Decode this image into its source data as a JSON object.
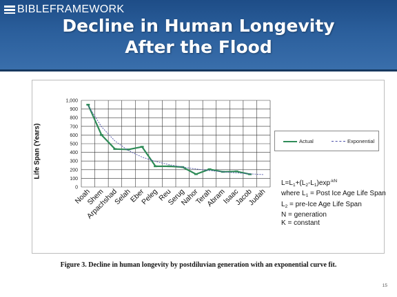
{
  "header": {
    "logo_text": "BIBLEFRAMEWORK",
    "logo_icon": "logo-bars-icon",
    "title_line1": "Decline in Human Longevity",
    "title_line2": "After the Flood"
  },
  "colors": {
    "header_bg": "#2b5f9c",
    "actual_line": "#2e8b57",
    "exponential_line": "#4a4fa8",
    "grid": "#333333"
  },
  "chart_data": {
    "type": "line",
    "categories": [
      "Noah",
      "Shem",
      "Arpachshad",
      "Selah",
      "Eber",
      "Peleg",
      "Reu",
      "Serug",
      "Nahor",
      "Terah",
      "Abram",
      "Isaac",
      "Jacob",
      "Judah"
    ],
    "ylabel": "Life Span (Years)",
    "xlabel": "",
    "ylim": [
      0,
      1000
    ],
    "yticks": [
      "0",
      "100",
      "200",
      "300",
      "400",
      "500",
      "600",
      "700",
      "800",
      "900",
      "1,000"
    ],
    "grid": true,
    "legend_position": "right",
    "series": [
      {
        "name": "Actual",
        "style": "solid",
        "values": [
          950,
          600,
          438,
          433,
          464,
          239,
          239,
          230,
          148,
          205,
          175,
          180,
          147,
          null
        ]
      },
      {
        "name": "Exponential",
        "style": "dashed",
        "values": [
          940,
          695,
          530,
          420,
          345,
          295,
          258,
          230,
          208,
          190,
          175,
          163,
          152,
          143
        ]
      }
    ],
    "annotation_lines": [
      "L=L1+(L2-L1)exp-kN",
      "where L1 = Post Ice Age Life Span",
      "L2 = pre-Ice Age Life Span",
      "N = generation",
      "K = constant"
    ]
  },
  "formula": {
    "l1_prefix": "L=L",
    "sub1": "1",
    "plus": "+(L",
    "sub2": "2",
    "minus": "-L",
    "sub3": "1",
    "exp": ")exp",
    "sup": "-kN",
    "line2a": "where L",
    "line2sub": "1",
    "line2b": " = Post Ice Age Life Span",
    "line3a": "L",
    "line3sub": "2",
    "line3b": " = pre-Ice Age Life Span",
    "line4": "N = generation",
    "line5": "K = constant"
  },
  "caption": "Figure 3. Decline in human longevity by postdiluvian generation with an exponential curve fit.",
  "page_number": "15"
}
